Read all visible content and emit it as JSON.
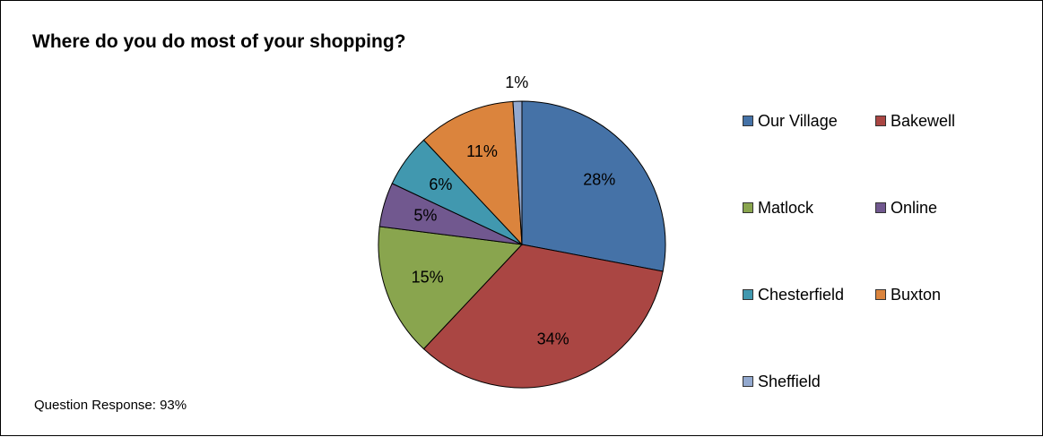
{
  "chart_data": {
    "type": "pie",
    "title": "Where do you do most of your shopping?",
    "categories": [
      "Our Village",
      "Bakewell",
      "Matlock",
      "Online",
      "Chesterfield",
      "Buxton",
      "Sheffield"
    ],
    "values": [
      28,
      34,
      15,
      5,
      6,
      11,
      1
    ],
    "labels": [
      "28%",
      "34%",
      "15%",
      "5%",
      "6%",
      "11%",
      "1%"
    ],
    "colors": [
      "#4572A7",
      "#AA4643",
      "#89A54E",
      "#71588F",
      "#4198AF",
      "#DB843D",
      "#93A9CF"
    ],
    "start_angle_deg": 0,
    "direction": "clockwise",
    "legend_position": "right"
  },
  "footnote": "Question Response: 93%"
}
